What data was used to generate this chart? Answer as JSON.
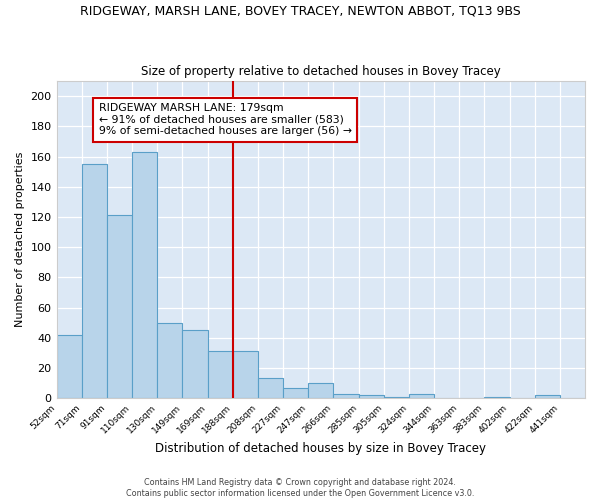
{
  "title": "RIDGEWAY, MARSH LANE, BOVEY TRACEY, NEWTON ABBOT, TQ13 9BS",
  "subtitle": "Size of property relative to detached houses in Bovey Tracey",
  "xlabel": "Distribution of detached houses by size in Bovey Tracey",
  "ylabel": "Number of detached properties",
  "bar_color": "#b8d4ea",
  "bar_edge_color": "#5a9fc8",
  "bin_labels": [
    "52sqm",
    "71sqm",
    "91sqm",
    "110sqm",
    "130sqm",
    "149sqm",
    "169sqm",
    "188sqm",
    "208sqm",
    "227sqm",
    "247sqm",
    "266sqm",
    "285sqm",
    "305sqm",
    "324sqm",
    "344sqm",
    "363sqm",
    "383sqm",
    "402sqm",
    "422sqm",
    "441sqm"
  ],
  "bar_heights": [
    42,
    155,
    121,
    163,
    50,
    45,
    31,
    31,
    13,
    7,
    10,
    3,
    2,
    1,
    3,
    0,
    0,
    1,
    0,
    2,
    0
  ],
  "num_bins": 21,
  "vline_bin": 7,
  "vline_color": "#cc0000",
  "annotation_text": "RIDGEWAY MARSH LANE: 179sqm\n← 91% of detached houses are smaller (583)\n9% of semi-detached houses are larger (56) →",
  "annotation_box_color": "#ffffff",
  "annotation_box_edge": "#cc0000",
  "ylim": [
    0,
    210
  ],
  "yticks": [
    0,
    20,
    40,
    60,
    80,
    100,
    120,
    140,
    160,
    180,
    200
  ],
  "bg_color": "#dce8f5",
  "fig_bg_color": "#ffffff",
  "footer_line1": "Contains HM Land Registry data © Crown copyright and database right 2024.",
  "footer_line2": "Contains public sector information licensed under the Open Government Licence v3.0."
}
